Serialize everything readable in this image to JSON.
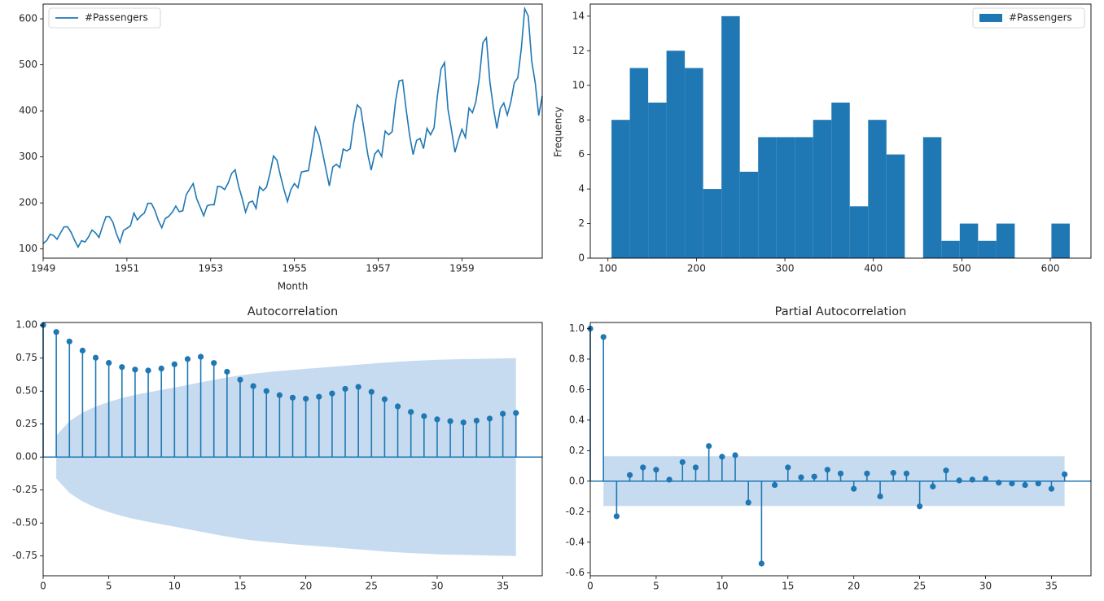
{
  "colors": {
    "series": "#1f77b4",
    "confidence_band": "#c6dbef",
    "axis": "#000000",
    "text": "#262626"
  },
  "chart_data": [
    {
      "type": "line",
      "title": "",
      "xlabel": "Month",
      "ylabel": "",
      "legend": {
        "position": "top-left",
        "entries": [
          "#Passengers"
        ]
      },
      "grid": false,
      "xlim": [
        1949.0,
        1960.917
      ],
      "ylim": [
        80,
        632
      ],
      "x_ticks": [
        "1949",
        "1951",
        "1953",
        "1955",
        "1957",
        "1959"
      ],
      "y_ticks": [
        "100",
        "200",
        "300",
        "400",
        "500",
        "600"
      ],
      "series": [
        {
          "name": "#Passengers",
          "x_start": "1949-01",
          "frequency": "monthly",
          "values": [
            112,
            118,
            132,
            129,
            121,
            135,
            148,
            148,
            136,
            119,
            104,
            118,
            115,
            126,
            141,
            135,
            125,
            149,
            170,
            170,
            158,
            133,
            114,
            140,
            145,
            150,
            178,
            163,
            172,
            178,
            199,
            199,
            184,
            162,
            146,
            166,
            171,
            180,
            193,
            181,
            183,
            218,
            230,
            242,
            209,
            191,
            172,
            194,
            196,
            196,
            236,
            235,
            229,
            243,
            264,
            272,
            237,
            211,
            180,
            201,
            204,
            188,
            235,
            227,
            234,
            264,
            302,
            293,
            259,
            229,
            203,
            229,
            242,
            233,
            267,
            269,
            270,
            315,
            364,
            347,
            312,
            274,
            237,
            278,
            284,
            277,
            317,
            313,
            318,
            374,
            413,
            405,
            355,
            306,
            271,
            306,
            315,
            301,
            356,
            348,
            355,
            422,
            465,
            467,
            404,
            347,
            305,
            336,
            340,
            318,
            362,
            348,
            363,
            435,
            491,
            505,
            404,
            359,
            310,
            337,
            360,
            342,
            406,
            396,
            420,
            472,
            548,
            559,
            463,
            407,
            362,
            405,
            417,
            391,
            419,
            461,
            472,
            535,
            622,
            606,
            508,
            461,
            390,
            432
          ]
        }
      ]
    },
    {
      "type": "bar",
      "subtype": "histogram",
      "title": "",
      "xlabel": "",
      "ylabel": "Frequency",
      "legend": {
        "position": "top-right",
        "entries": [
          "#Passengers"
        ]
      },
      "grid": false,
      "bins": 25,
      "bin_range": [
        104,
        622
      ],
      "xlim": [
        80,
        646
      ],
      "ylim": [
        0,
        14.7
      ],
      "x_ticks": [
        "100",
        "200",
        "300",
        "400",
        "500",
        "600"
      ],
      "y_ticks": [
        "0",
        "2",
        "4",
        "6",
        "8",
        "10",
        "12",
        "14"
      ],
      "counts": [
        8,
        11,
        9,
        12,
        11,
        4,
        14,
        5,
        7,
        7,
        7,
        8,
        9,
        3,
        8,
        6,
        0,
        7,
        1,
        2,
        1,
        2,
        0,
        0,
        2
      ]
    },
    {
      "type": "bar",
      "subtype": "stem",
      "title": "Autocorrelation",
      "xlabel": "",
      "ylabel": "",
      "grid": false,
      "xlim": [
        0,
        38
      ],
      "ylim": [
        -0.9,
        1.02
      ],
      "x_ticks": [
        "0",
        "5",
        "10",
        "15",
        "20",
        "25",
        "30",
        "35"
      ],
      "y_ticks": [
        "1.00",
        "0.75",
        "0.50",
        "0.25",
        "0.00",
        "-0.25",
        "-0.50",
        "-0.75"
      ],
      "lags": [
        0,
        1,
        2,
        3,
        4,
        5,
        6,
        7,
        8,
        9,
        10,
        11,
        12,
        13,
        14,
        15,
        16,
        17,
        18,
        19,
        20,
        21,
        22,
        23,
        24,
        25,
        26,
        27,
        28,
        29,
        30,
        31,
        32,
        33,
        34,
        35,
        36
      ],
      "values": [
        1.0,
        0.948,
        0.876,
        0.807,
        0.753,
        0.714,
        0.682,
        0.663,
        0.656,
        0.671,
        0.703,
        0.743,
        0.76,
        0.713,
        0.647,
        0.586,
        0.538,
        0.5,
        0.469,
        0.45,
        0.442,
        0.457,
        0.482,
        0.517,
        0.532,
        0.494,
        0.438,
        0.384,
        0.342,
        0.31,
        0.286,
        0.272,
        0.262,
        0.276,
        0.292,
        0.328,
        0.334
      ],
      "confidence_band": [
        0,
        0.163,
        0.272,
        0.337,
        0.383,
        0.418,
        0.447,
        0.471,
        0.491,
        0.509,
        0.527,
        0.546,
        0.566,
        0.585,
        0.603,
        0.619,
        0.632,
        0.643,
        0.652,
        0.661,
        0.669,
        0.676,
        0.684,
        0.692,
        0.7,
        0.708,
        0.716,
        0.722,
        0.728,
        0.733,
        0.737,
        0.74,
        0.742,
        0.744,
        0.746,
        0.748,
        0.75
      ]
    },
    {
      "type": "bar",
      "subtype": "stem",
      "title": "Partial Autocorrelation",
      "xlabel": "",
      "ylabel": "",
      "grid": false,
      "xlim": [
        0,
        38
      ],
      "ylim": [
        -0.62,
        1.04
      ],
      "x_ticks": [
        "0",
        "5",
        "10",
        "15",
        "20",
        "25",
        "30",
        "35"
      ],
      "y_ticks": [
        "1.0",
        "0.8",
        "0.6",
        "0.4",
        "0.2",
        "0.0",
        "-0.2",
        "-0.4",
        "-0.6"
      ],
      "lags": [
        0,
        1,
        2,
        3,
        4,
        5,
        6,
        7,
        8,
        9,
        10,
        11,
        12,
        13,
        14,
        15,
        16,
        17,
        18,
        19,
        20,
        21,
        22,
        23,
        24,
        25,
        26,
        27,
        28,
        29,
        30,
        31,
        32,
        33,
        34,
        35,
        36
      ],
      "values": [
        1.0,
        0.945,
        -0.23,
        0.04,
        0.09,
        0.075,
        0.01,
        0.125,
        0.09,
        0.23,
        0.16,
        0.17,
        -0.14,
        -0.54,
        -0.025,
        0.09,
        0.025,
        0.03,
        0.075,
        0.05,
        -0.05,
        0.05,
        -0.1,
        0.055,
        0.05,
        -0.165,
        -0.035,
        0.07,
        0.005,
        0.01,
        0.015,
        -0.01,
        -0.015,
        -0.025,
        -0.015,
        -0.05,
        0.045
      ],
      "confidence_band": [
        0.163,
        0.163
      ]
    }
  ]
}
